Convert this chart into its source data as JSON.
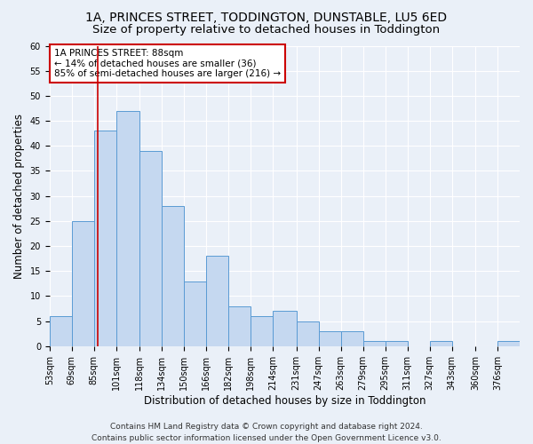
{
  "title_line1": "1A, PRINCES STREET, TODDINGTON, DUNSTABLE, LU5 6ED",
  "title_line2": "Size of property relative to detached houses in Toddington",
  "xlabel": "Distribution of detached houses by size in Toddington",
  "ylabel": "Number of detached properties",
  "bar_values": [
    6,
    25,
    43,
    47,
    39,
    28,
    13,
    18,
    8,
    6,
    7,
    5,
    3,
    3,
    1,
    1,
    0,
    1,
    0,
    0,
    1
  ],
  "bar_left_edges": [
    53,
    69,
    85,
    101,
    118,
    134,
    150,
    166,
    182,
    198,
    214,
    231,
    247,
    263,
    279,
    295,
    311,
    327,
    343,
    360,
    376
  ],
  "bar_widths": [
    16,
    16,
    16,
    17,
    16,
    16,
    16,
    16,
    16,
    16,
    17,
    16,
    16,
    16,
    16,
    16,
    16,
    16,
    17,
    16,
    16
  ],
  "xtick_labels": [
    "53sqm",
    "69sqm",
    "85sqm",
    "101sqm",
    "118sqm",
    "134sqm",
    "150sqm",
    "166sqm",
    "182sqm",
    "198sqm",
    "214sqm",
    "231sqm",
    "247sqm",
    "263sqm",
    "279sqm",
    "295sqm",
    "311sqm",
    "327sqm",
    "343sqm",
    "360sqm",
    "376sqm"
  ],
  "bar_color": "#c5d8f0",
  "bar_edge_color": "#5a9bd4",
  "property_size": 88,
  "vline_color": "#cc0000",
  "ylim": [
    0,
    60
  ],
  "yticks": [
    0,
    5,
    10,
    15,
    20,
    25,
    30,
    35,
    40,
    45,
    50,
    55,
    60
  ],
  "annotation_text": "1A PRINCES STREET: 88sqm\n← 14% of detached houses are smaller (36)\n85% of semi-detached houses are larger (216) →",
  "annotation_box_facecolor": "#ffffff",
  "annotation_box_edgecolor": "#cc0000",
  "footer_line1": "Contains HM Land Registry data © Crown copyright and database right 2024.",
  "footer_line2": "Contains public sector information licensed under the Open Government Licence v3.0.",
  "background_color": "#eaf0f8",
  "grid_color": "#ffffff",
  "title_fontsize": 10,
  "subtitle_fontsize": 9.5,
  "ylabel_fontsize": 8.5,
  "xlabel_fontsize": 8.5,
  "tick_fontsize": 7,
  "annotation_fontsize": 7.5,
  "footer_fontsize": 6.5
}
